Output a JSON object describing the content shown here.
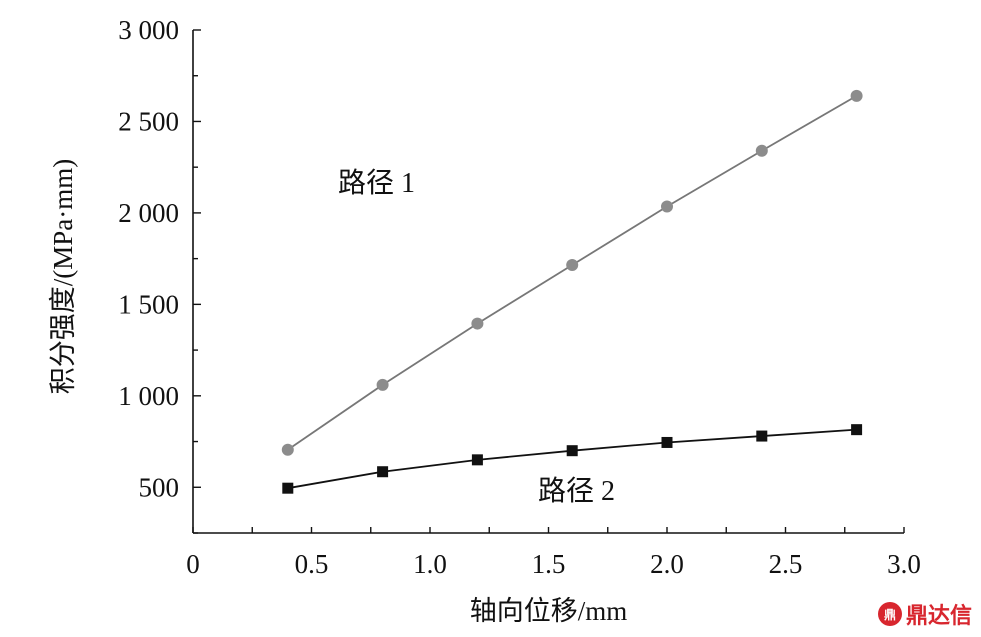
{
  "chart_data": {
    "type": "line",
    "title": "",
    "xlabel": "轴向位移/mm",
    "ylabel": "积分强度/(MPa·mm)",
    "xlim": [
      0,
      3.0
    ],
    "ylim": [
      250,
      3000
    ],
    "x_ticks": [
      0,
      0.5,
      1.0,
      1.5,
      2.0,
      2.5,
      3.0
    ],
    "x_tick_labels": [
      "0",
      "0.5",
      "1.0",
      "1.5",
      "2.0",
      "2.5",
      "3.0"
    ],
    "y_ticks": [
      500,
      1000,
      1500,
      2000,
      2500,
      3000
    ],
    "y_tick_labels": [
      "500",
      "1 000",
      "1 500",
      "2 000",
      "2 500",
      "3 000"
    ],
    "grid": false,
    "series": [
      {
        "name": "路径 1",
        "marker": "circle",
        "color": "#8c8c8c",
        "x": [
          0.4,
          0.8,
          1.2,
          1.6,
          2.0,
          2.4,
          2.8
        ],
        "values": [
          705,
          1060,
          1395,
          1715,
          2035,
          2340,
          2640
        ]
      },
      {
        "name": "路径 2",
        "marker": "square",
        "color": "#111111",
        "x": [
          0.4,
          0.8,
          1.2,
          1.6,
          2.0,
          2.4,
          2.8
        ],
        "values": [
          495,
          585,
          650,
          700,
          745,
          780,
          815
        ]
      }
    ]
  },
  "watermark": {
    "icon": "seal-icon",
    "icon_text": "鼎",
    "text": "鼎达信",
    "color": "#d8262e"
  }
}
